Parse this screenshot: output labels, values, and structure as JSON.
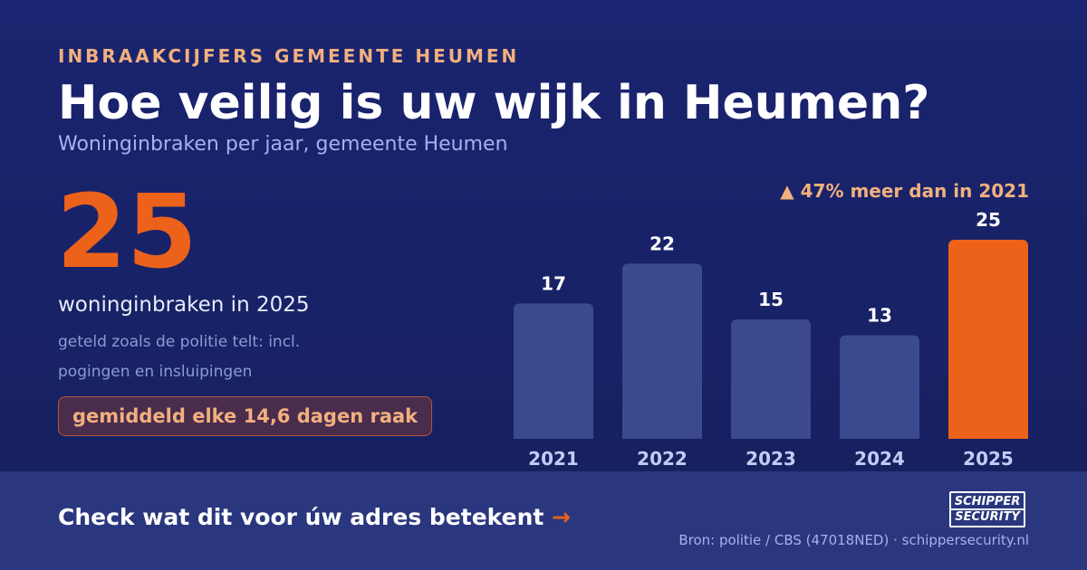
{
  "eyebrow": "INBRAAKCIJFERS GEMEENTE HEUMEN",
  "title": "Hoe veilig is uw wijk in Heumen?",
  "subtitle": "Woninginbraken per jaar, gemeente Heumen",
  "highlight": {
    "number": "25",
    "label": "woninginbraken in 2025",
    "note_line1": "geteld zoals de politie telt: incl.",
    "note_line2": "pogingen en insluipingen",
    "pill": "gemiddeld elke 14,6 dagen raak"
  },
  "callout": "▲ 47% meer dan in 2021",
  "chart_data": {
    "type": "bar",
    "categories": [
      "2021",
      "2022",
      "2023",
      "2024",
      "2025"
    ],
    "values": [
      17,
      22,
      15,
      13,
      25
    ],
    "highlight_index": 4,
    "data_labels": true,
    "title": "",
    "xlabel": "",
    "ylabel": "",
    "ylim": [
      0,
      25
    ],
    "grid": false,
    "legend": "none"
  },
  "colors": {
    "bar": "#3b4a8e",
    "bar_highlight": "#ec621a",
    "accent": "#ec621a",
    "accent_light": "#f2b07e",
    "label": "#ffffff",
    "tick": "#c2cdf6"
  },
  "footer": {
    "cta": "Check wat dit voor úw adres betekent",
    "cta_arrow": "→",
    "source": "Bron: politie / CBS (47018NED) · schippersecurity.nl"
  },
  "logo": {
    "line1": "SCHIPPER",
    "line2": "SECURITY"
  }
}
